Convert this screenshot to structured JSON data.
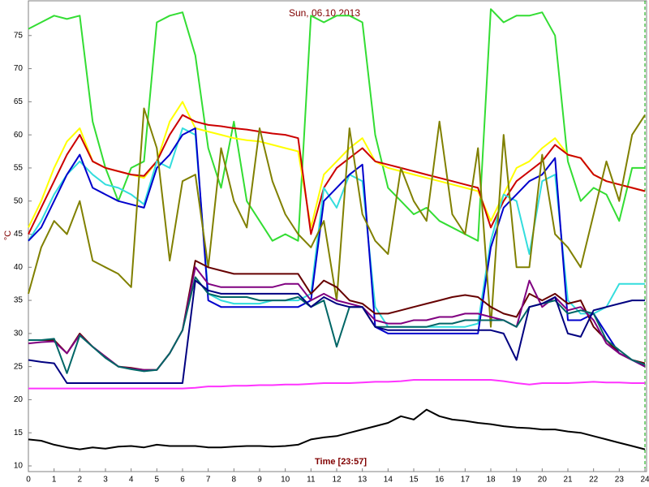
{
  "chart_data": {
    "type": "line",
    "title": "Sun, 06.10.2013",
    "x_label": "Time [23:57]",
    "y_label": "°C",
    "x": [
      0,
      0.5,
      1,
      1.5,
      2,
      2.5,
      3,
      3.5,
      4,
      4.5,
      5,
      5.5,
      6,
      6.5,
      7,
      7.5,
      8,
      8.5,
      9,
      9.5,
      10,
      10.5,
      11,
      11.5,
      12,
      12.5,
      13,
      13.5,
      14,
      14.5,
      15,
      15.5,
      16,
      16.5,
      17,
      17.5,
      18,
      18.5,
      19,
      19.5,
      20,
      20.5,
      21,
      21.5,
      22,
      22.5,
      23,
      23.5,
      24
    ],
    "xlim": [
      0,
      24
    ],
    "xticks": [
      0,
      1,
      2,
      3,
      4,
      5,
      6,
      7,
      8,
      9,
      10,
      11,
      12,
      13,
      14,
      15,
      16,
      17,
      18,
      19,
      20,
      21,
      22,
      23,
      24
    ],
    "ylim": [
      10,
      80
    ],
    "yticks": [
      10,
      15,
      20,
      25,
      30,
      35,
      40,
      45,
      50,
      55,
      60,
      65,
      70,
      75
    ],
    "series": [
      {
        "color": "#33dd33",
        "values": [
          76,
          77,
          78,
          77.5,
          78,
          62,
          55,
          50,
          55,
          56,
          77,
          78,
          78.5,
          72,
          58,
          52,
          62,
          50,
          47,
          44,
          45,
          44,
          78,
          77,
          78,
          78,
          77,
          60,
          52,
          50,
          48,
          49,
          47,
          46,
          45,
          44,
          79,
          77,
          78,
          78,
          78.5,
          75,
          56,
          50,
          52,
          51,
          47,
          55,
          55
        ]
      },
      {
        "color": "#ffff00",
        "values": [
          46,
          50,
          55,
          59,
          61,
          56,
          55,
          54.5,
          54,
          53.5,
          56,
          62,
          65,
          61,
          60.5,
          60,
          59.5,
          59.2,
          59,
          58.5,
          58,
          57.5,
          46,
          54,
          56,
          58,
          59.5,
          56,
          55,
          54.5,
          54,
          53.5,
          53,
          52.5,
          52,
          51.5,
          47,
          51,
          55,
          56,
          58,
          59.5,
          57,
          56.5,
          54,
          53,
          52.5,
          52,
          51.5
        ]
      },
      {
        "color": "#cc0000",
        "values": [
          45,
          49,
          53,
          57,
          60,
          56,
          55,
          54.5,
          54,
          53.8,
          56,
          60,
          63,
          62,
          61.5,
          61.3,
          61,
          60.8,
          60.5,
          60.2,
          60,
          59.5,
          45,
          52,
          55,
          56.5,
          58,
          56,
          55.5,
          55,
          54.5,
          54,
          53.5,
          53,
          52.5,
          52,
          46,
          50,
          53,
          54.5,
          56,
          58.5,
          57,
          56.5,
          54,
          53,
          52.5,
          52,
          51.5
        ]
      },
      {
        "color": "#33dddd",
        "values": [
          44,
          47,
          51,
          54,
          56,
          54,
          52.5,
          52,
          51,
          49.5,
          56,
          55,
          61,
          60,
          36,
          35,
          34.5,
          34.5,
          34.5,
          35,
          35,
          35,
          36,
          52,
          49,
          54,
          53,
          34,
          31,
          31,
          31,
          31,
          31,
          31,
          31,
          31.5,
          44,
          51,
          50,
          42,
          53,
          54,
          35,
          33,
          33,
          34,
          37.5,
          37.5,
          37.5
        ]
      },
      {
        "color": "#0000cc",
        "values": [
          44,
          46,
          50,
          54,
          57,
          52,
          51,
          50,
          49.5,
          49,
          55,
          57,
          60,
          61,
          35,
          34,
          34,
          34,
          34,
          34,
          34,
          34,
          35,
          50,
          52,
          54,
          55.5,
          31,
          30,
          30,
          30,
          30,
          30,
          30,
          30,
          30,
          43,
          49,
          51,
          53,
          54,
          56.5,
          32,
          32,
          33,
          30,
          27,
          26,
          25
        ]
      },
      {
        "color": "#808000",
        "values": [
          36,
          43,
          47,
          45,
          50,
          41,
          40,
          39,
          37,
          64,
          58,
          41,
          53,
          54,
          40,
          58,
          50,
          46,
          61,
          53,
          48,
          45,
          43,
          47,
          35,
          61,
          48,
          44,
          42,
          55,
          50,
          47,
          62,
          48,
          45,
          58,
          31,
          60,
          40,
          40,
          57,
          45,
          43,
          40,
          48,
          56,
          50,
          60,
          63
        ]
      },
      {
        "color": "#660000",
        "values": [
          29,
          29,
          29,
          27,
          30,
          28,
          26.5,
          25,
          24.8,
          24.5,
          24.5,
          27,
          30.5,
          41,
          40,
          39.5,
          39,
          39,
          39,
          39,
          39,
          39,
          36,
          38,
          37,
          35,
          34.5,
          33,
          33,
          33.5,
          34,
          34.5,
          35,
          35.5,
          35.8,
          35.5,
          34,
          33,
          32.5,
          36,
          35,
          36,
          34.5,
          35,
          31,
          29,
          27,
          26,
          25.5
        ]
      },
      {
        "color": "#800080",
        "values": [
          28.5,
          28.7,
          28.8,
          27,
          29.8,
          28,
          26.5,
          25,
          24.7,
          24.5,
          24.5,
          27,
          30.5,
          40,
          37.5,
          37,
          37,
          37,
          37,
          37,
          37.5,
          37.5,
          35,
          36,
          35,
          34.5,
          34,
          32,
          31.5,
          31.5,
          32,
          32,
          32.5,
          32.5,
          33,
          33,
          32.5,
          32,
          31,
          38,
          34,
          35.5,
          33.5,
          34,
          32,
          28.5,
          27,
          26,
          25
        ]
      },
      {
        "color": "#006666",
        "values": [
          29,
          29,
          29.2,
          24,
          29.7,
          28,
          26.3,
          25,
          24.6,
          24.3,
          24.5,
          27,
          30.5,
          38.5,
          36,
          35.5,
          35.5,
          35.5,
          35,
          35,
          35,
          35.5,
          34,
          35,
          28,
          34,
          34,
          31,
          31,
          31,
          31,
          31,
          31.5,
          31.5,
          32,
          32,
          32,
          32,
          31,
          34,
          34.5,
          35,
          33,
          33.5,
          33,
          29,
          27.5,
          26,
          25.3
        ]
      },
      {
        "color": "#000080",
        "values": [
          26,
          25.7,
          25.5,
          22.5,
          22.5,
          22.5,
          22.5,
          22.5,
          22.5,
          22.5,
          22.5,
          22.5,
          22.5,
          38,
          36.5,
          36,
          36,
          36,
          36,
          36,
          36,
          36,
          34,
          35.5,
          34.5,
          34,
          34,
          31,
          30.5,
          30.5,
          30.5,
          30.5,
          30.5,
          30.5,
          30.5,
          30.5,
          30.5,
          30,
          26,
          34,
          34.5,
          35.5,
          30,
          29.5,
          33.5,
          34,
          34.5,
          35,
          35
        ]
      },
      {
        "color": "#ff33ff",
        "values": [
          21.7,
          21.7,
          21.7,
          21.7,
          21.7,
          21.7,
          21.7,
          21.7,
          21.7,
          21.7,
          21.7,
          21.7,
          21.7,
          21.8,
          22,
          22,
          22.1,
          22.1,
          22.2,
          22.2,
          22.3,
          22.3,
          22.4,
          22.5,
          22.5,
          22.5,
          22.6,
          22.7,
          22.7,
          22.8,
          23,
          23,
          23,
          23,
          23,
          23,
          23,
          22.8,
          22.5,
          22.3,
          22.5,
          22.5,
          22.5,
          22.6,
          22.7,
          22.6,
          22.6,
          22.5,
          22.5
        ]
      },
      {
        "color": "#000000",
        "values": [
          14,
          13.8,
          13.2,
          12.8,
          12.5,
          12.8,
          12.6,
          12.9,
          13,
          12.8,
          13.2,
          13,
          13,
          13,
          12.8,
          12.8,
          12.9,
          13,
          13,
          12.9,
          13,
          13.2,
          14,
          14.3,
          14.5,
          15,
          15.5,
          16,
          16.5,
          17.5,
          17,
          18.5,
          17.5,
          17,
          16.8,
          16.5,
          16.3,
          16,
          15.8,
          15.7,
          15.5,
          15.5,
          15.2,
          15,
          14.5,
          14,
          13.5,
          13,
          12.5
        ]
      }
    ]
  }
}
